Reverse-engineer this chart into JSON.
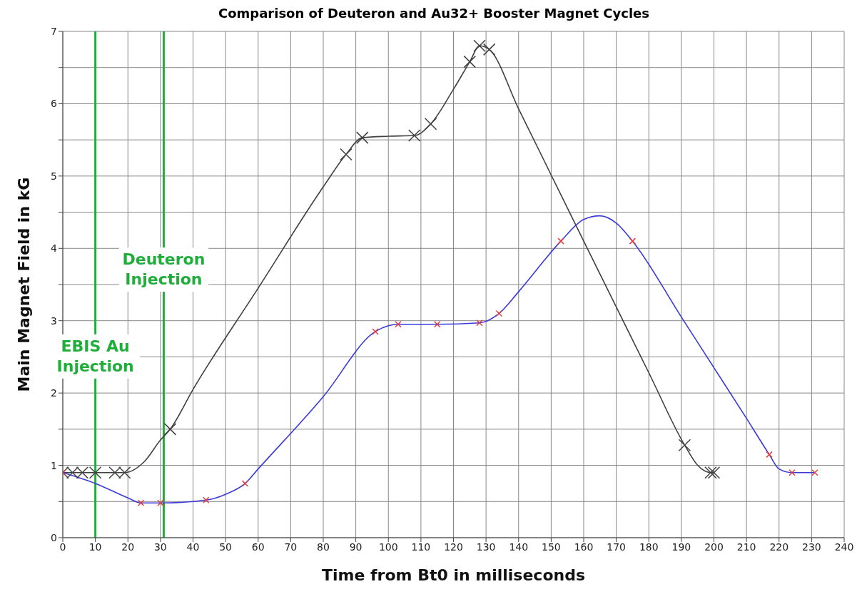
{
  "chart_data": {
    "type": "line",
    "title": "Comparison of Deuteron and Au32+ Booster Magnet Cycles",
    "xlabel": "Time from Bt0 in milliseconds",
    "ylabel": "Main Magnet Field in kG",
    "xlim": [
      0,
      240
    ],
    "xticks": [
      0,
      10,
      20,
      30,
      40,
      50,
      60,
      70,
      80,
      90,
      100,
      110,
      120,
      130,
      140,
      150,
      160,
      170,
      180,
      190,
      200,
      210,
      220,
      230,
      240
    ],
    "ylim": [
      0,
      7
    ],
    "yticks": [
      0,
      {
        "value": 0.5,
        "label": null
      },
      1,
      {
        "value": 1.5,
        "label": null
      },
      2,
      {
        "value": 2.5,
        "label": null
      },
      3,
      {
        "value": 3.5,
        "label": null
      },
      4,
      {
        "value": 4.5,
        "label": null
      },
      5,
      {
        "value": 5.5,
        "label": null
      },
      6,
      {
        "value": 6.5,
        "label": null
      },
      7
    ],
    "grid": true,
    "series": [
      {
        "type": "line",
        "color": "#404040",
        "marker": "none",
        "x": [
          0,
          10,
          19,
          25,
          30,
          33,
          40,
          60,
          80,
          87,
          92,
          100,
          108,
          113,
          120,
          125,
          128,
          131,
          140,
          160,
          180,
          191,
          195,
          199,
          200
        ],
        "values": [
          0.9,
          0.9,
          0.9,
          1.05,
          1.35,
          1.5,
          2.05,
          3.45,
          4.85,
          5.3,
          5.53,
          5.55,
          5.56,
          5.72,
          6.2,
          6.58,
          6.8,
          6.75,
          5.93,
          4.1,
          2.28,
          1.28,
          1.0,
          0.9,
          0.9
        ]
      },
      {
        "type": "scatter",
        "color": "#404040",
        "marker": "cross",
        "x": [
          0,
          3,
          6,
          10,
          16,
          19,
          33,
          87,
          92,
          108,
          113,
          125,
          128,
          131,
          191,
          199,
          200
        ],
        "values": [
          0.9,
          0.9,
          0.9,
          0.9,
          0.9,
          0.9,
          1.5,
          5.3,
          5.53,
          5.56,
          5.72,
          6.58,
          6.8,
          6.75,
          1.28,
          0.9,
          0.9
        ]
      },
      {
        "type": "line",
        "color": "#3a3ad8",
        "marker": "none",
        "x": [
          0,
          10,
          20,
          24,
          30,
          44,
          50,
          56,
          60,
          80,
          96,
          100,
          103,
          115,
          128,
          134,
          140,
          153,
          160,
          165,
          170,
          175,
          190,
          200,
          210,
          217,
          220,
          224,
          231
        ],
        "values": [
          0.9,
          0.75,
          0.55,
          0.48,
          0.48,
          0.52,
          0.6,
          0.75,
          0.95,
          1.95,
          2.85,
          2.93,
          2.95,
          2.95,
          2.97,
          3.1,
          3.4,
          4.1,
          4.4,
          4.45,
          4.35,
          4.1,
          3.05,
          2.35,
          1.65,
          1.15,
          0.95,
          0.9,
          0.9
        ]
      },
      {
        "type": "scatter",
        "color": "#e04040",
        "marker": "cross",
        "x": [
          0,
          24,
          30,
          44,
          56,
          96,
          103,
          115,
          128,
          134,
          153,
          175,
          217,
          224,
          231
        ],
        "values": [
          0.9,
          0.48,
          0.48,
          0.52,
          0.75,
          2.85,
          2.95,
          2.95,
          2.97,
          3.1,
          4.1,
          4.1,
          1.15,
          0.9,
          0.9
        ]
      }
    ],
    "ref_lines": [
      {
        "axis": "x",
        "value": 10,
        "color": "#1fae3a"
      },
      {
        "axis": "x",
        "value": 31,
        "color": "#1fae3a"
      }
    ],
    "annotations": [
      {
        "text": "EBIS Au Injection",
        "x": 10,
        "y": 2.2
      },
      {
        "text": "Deuteron Injection",
        "x": 31,
        "y": 3.4
      }
    ]
  }
}
